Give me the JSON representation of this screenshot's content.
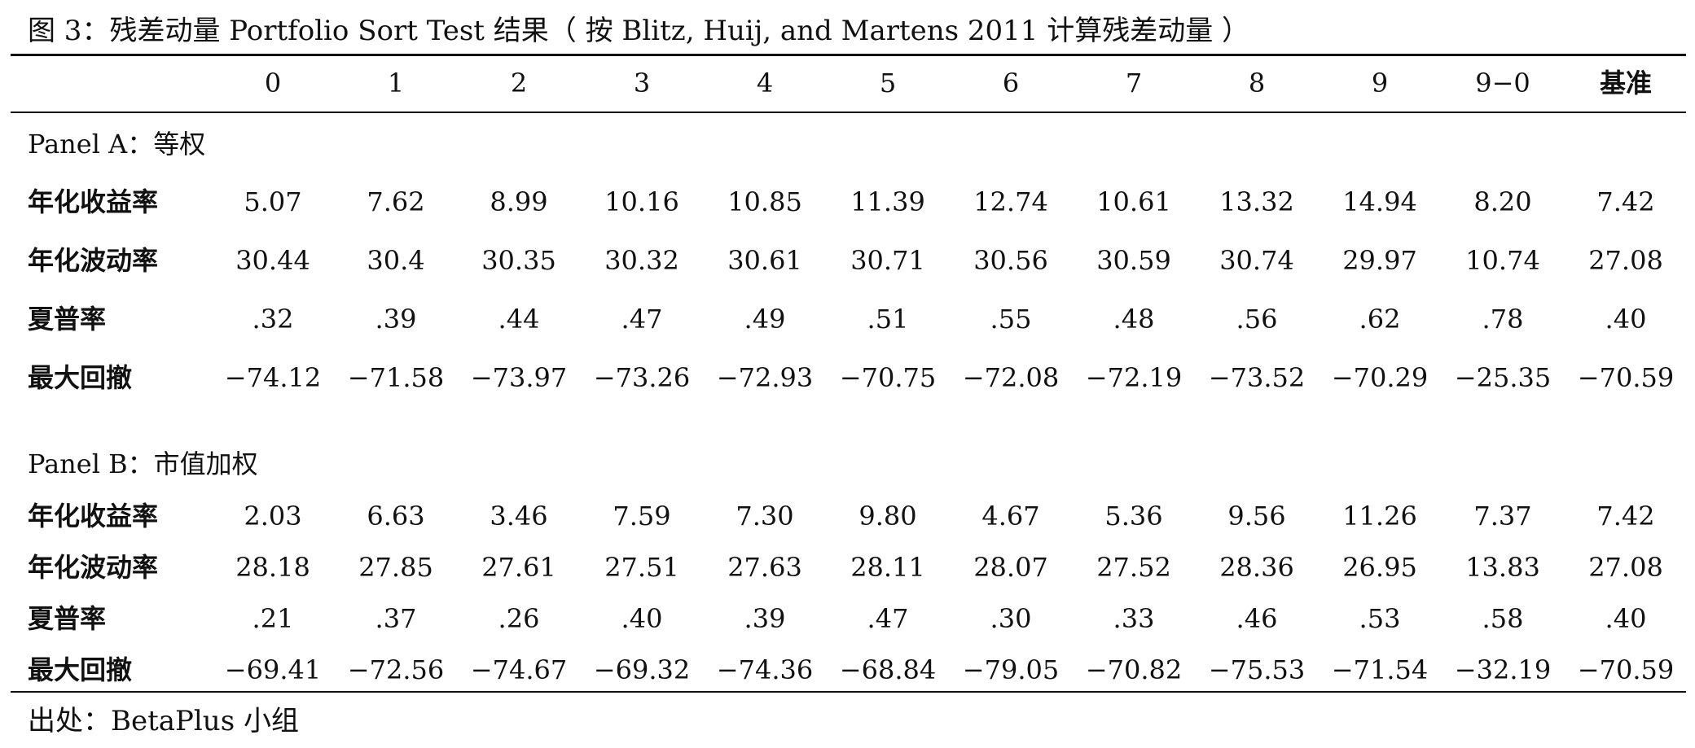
{
  "title": "图 3：残差动量 Portfolio Sort Test 结果（ 按 Blitz, Huij, and Martens 2011 计算残差动量 ）",
  "columns": [
    "0",
    "1",
    "2",
    "3",
    "4",
    "5",
    "6",
    "7",
    "8",
    "9",
    "9−0",
    "基准"
  ],
  "panels": [
    {
      "title": "Panel A：等权",
      "rows": [
        {
          "label": "年化收益率",
          "values": [
            "5.07",
            "7.62",
            "8.99",
            "10.16",
            "10.85",
            "11.39",
            "12.74",
            "10.61",
            "13.32",
            "14.94",
            "8.20",
            "7.42"
          ]
        },
        {
          "label": "年化波动率",
          "values": [
            "30.44",
            "30.4",
            "30.35",
            "30.32",
            "30.61",
            "30.71",
            "30.56",
            "30.59",
            "30.74",
            "29.97",
            "10.74",
            "27.08"
          ]
        },
        {
          "label": "夏普率",
          "values": [
            ".32",
            ".39",
            ".44",
            ".47",
            ".49",
            ".51",
            ".55",
            ".48",
            ".56",
            ".62",
            ".78",
            ".40"
          ]
        },
        {
          "label": "最大回撤",
          "values": [
            "−74.12",
            "−71.58",
            "−73.97",
            "−73.26",
            "−72.93",
            "−70.75",
            "−72.08",
            "−72.19",
            "−73.52",
            "−70.29",
            "−25.35",
            "−70.59"
          ]
        }
      ]
    },
    {
      "title": "Panel B：市值加权",
      "rows": [
        {
          "label": "年化收益率",
          "values": [
            "2.03",
            "6.63",
            "3.46",
            "7.59",
            "7.30",
            "9.80",
            "4.67",
            "5.36",
            "9.56",
            "11.26",
            "7.37",
            "7.42"
          ]
        },
        {
          "label": "年化波动率",
          "values": [
            "28.18",
            "27.85",
            "27.61",
            "27.51",
            "27.63",
            "28.11",
            "28.07",
            "27.52",
            "28.36",
            "26.95",
            "13.83",
            "27.08"
          ]
        },
        {
          "label": "夏普率",
          "values": [
            ".21",
            ".37",
            ".26",
            ".40",
            ".39",
            ".47",
            ".30",
            ".33",
            ".46",
            ".53",
            ".58",
            ".40"
          ]
        },
        {
          "label": "最大回撤",
          "values": [
            "−69.41",
            "−72.56",
            "−74.67",
            "−69.32",
            "−74.36",
            "−68.84",
            "−79.05",
            "−70.82",
            "−75.53",
            "−71.54",
            "−32.19",
            "−70.59"
          ]
        }
      ]
    }
  ],
  "source": "出处：BetaPlus 小组"
}
